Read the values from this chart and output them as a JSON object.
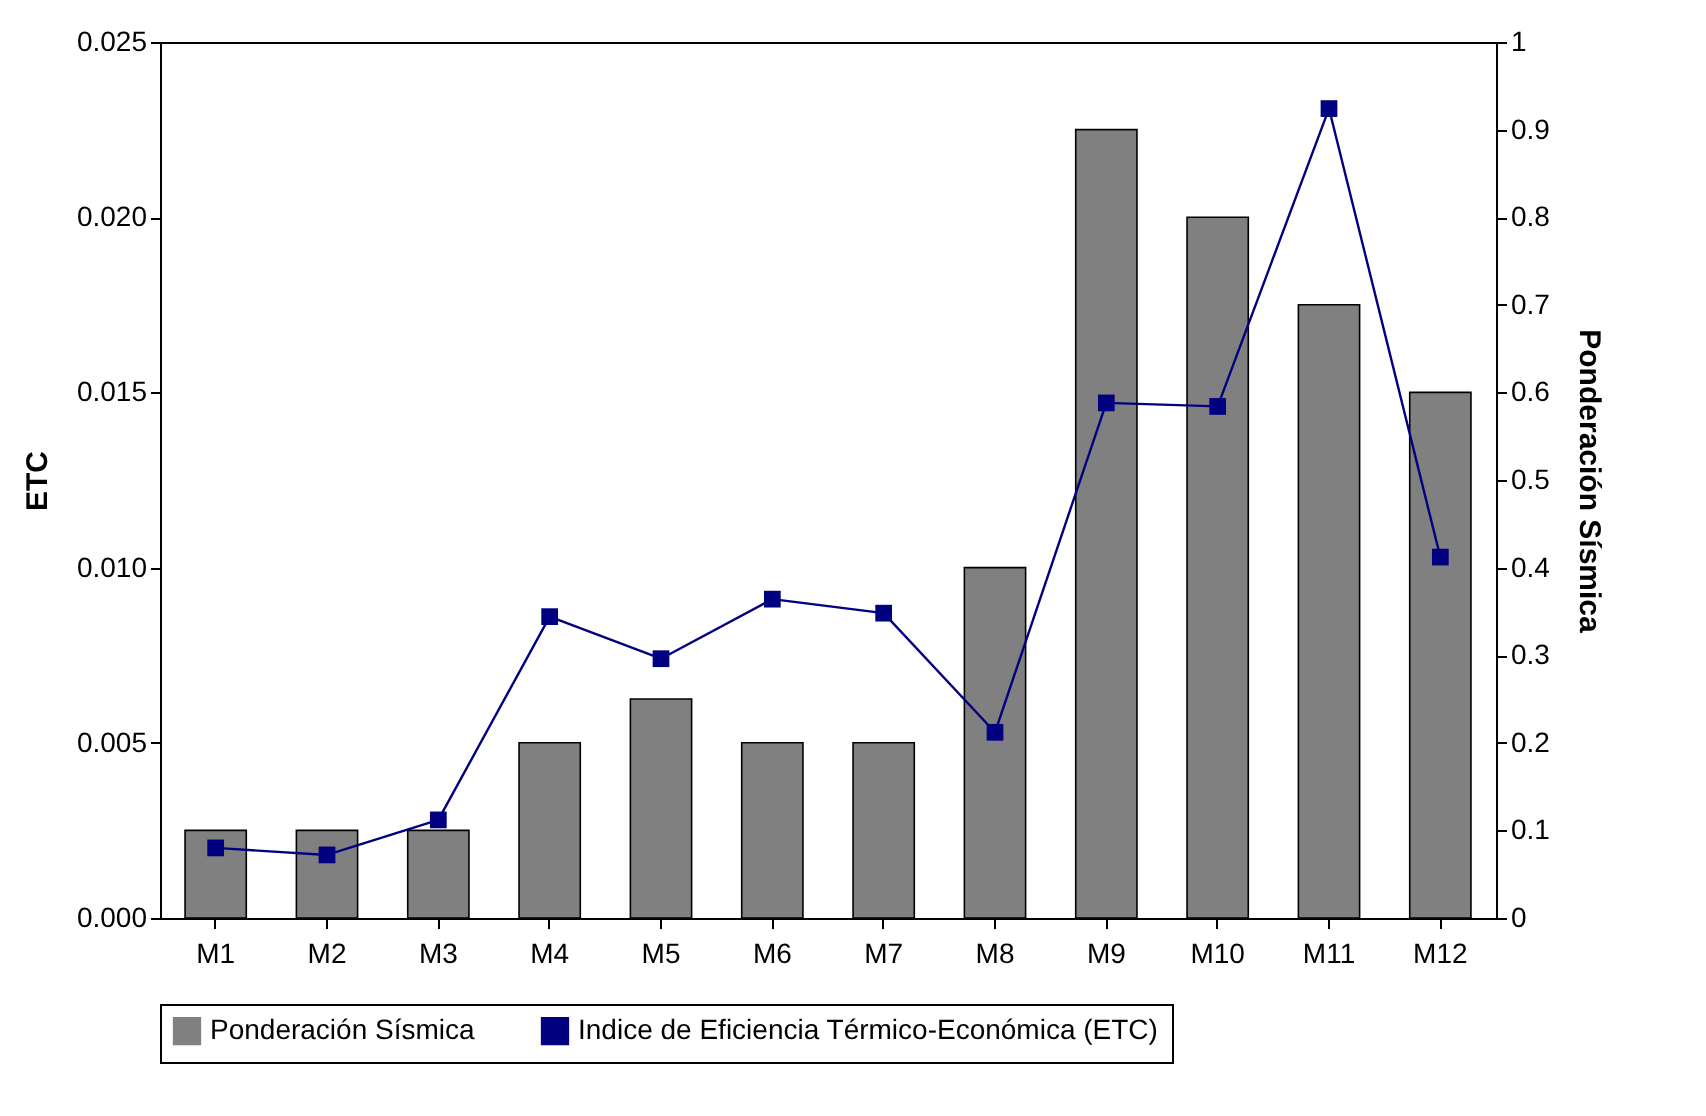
{
  "chart_data": {
    "type": "bar",
    "ylabel": "ETC",
    "y2label": "Ponderación Sísmica",
    "categories": [
      "M1",
      "M2",
      "M3",
      "M4",
      "M5",
      "M6",
      "M7",
      "M8",
      "M9",
      "M10",
      "M11",
      "M12"
    ],
    "series": [
      {
        "name": "Ponderación Sísmica",
        "axis": "y2",
        "color": "#808080",
        "values": [
          0.1,
          0.1,
          0.1,
          0.2,
          0.25,
          0.2,
          0.2,
          0.4,
          0.9,
          0.8,
          0.7,
          0.6
        ]
      },
      {
        "name": "Indice de Eficiencia Térmico-Económica (ETC)",
        "type": "line",
        "axis": "y",
        "color": "#000080",
        "values": [
          0.002,
          0.0018,
          0.0028,
          0.0086,
          0.0074,
          0.0091,
          0.0087,
          0.0053,
          0.0147,
          0.0146,
          0.0231,
          0.0103
        ]
      }
    ],
    "ylim": [
      0,
      0.025
    ],
    "yticks": [
      {
        "value": 0,
        "label": "0.000"
      },
      {
        "value": 0.005,
        "label": "0.005"
      },
      {
        "value": 0.01,
        "label": "0.010"
      },
      {
        "value": 0.015,
        "label": "0.015"
      },
      {
        "value": 0.02,
        "label": "0.020"
      },
      {
        "value": 0.025,
        "label": "0.025"
      }
    ],
    "y2lim": [
      0,
      1
    ],
    "y2ticks": [
      0,
      0.1,
      0.2,
      0.3,
      0.4,
      0.5,
      0.6,
      0.7,
      0.8,
      0.9,
      1
    ],
    "marker": "square",
    "line_style": "solid",
    "legend": "bottom"
  }
}
